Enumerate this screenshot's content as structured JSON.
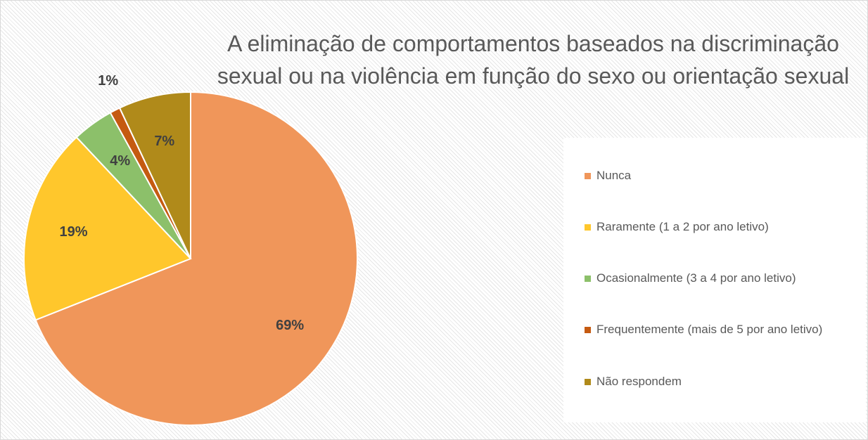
{
  "chart_data": {
    "type": "pie",
    "title": "A eliminação de comportamentos baseados na discriminação sexual ou na violência em função do sexo ou orientação sexual",
    "categories": [
      "Nunca",
      "Raramente (1 a 2 por ano letivo)",
      "Ocasionalmente (3 a 4 por ano letivo)",
      "Frequentemente (mais de 5 por ano letivo)",
      "Não respondem"
    ],
    "values": [
      69,
      19,
      4,
      1,
      7
    ],
    "value_labels": [
      "69%",
      "19%",
      "4%",
      "1%",
      "7%"
    ],
    "colors": [
      "#f0965a",
      "#ffc72c",
      "#8cc06a",
      "#c55a11",
      "#b08a1a"
    ],
    "legend": "right"
  }
}
